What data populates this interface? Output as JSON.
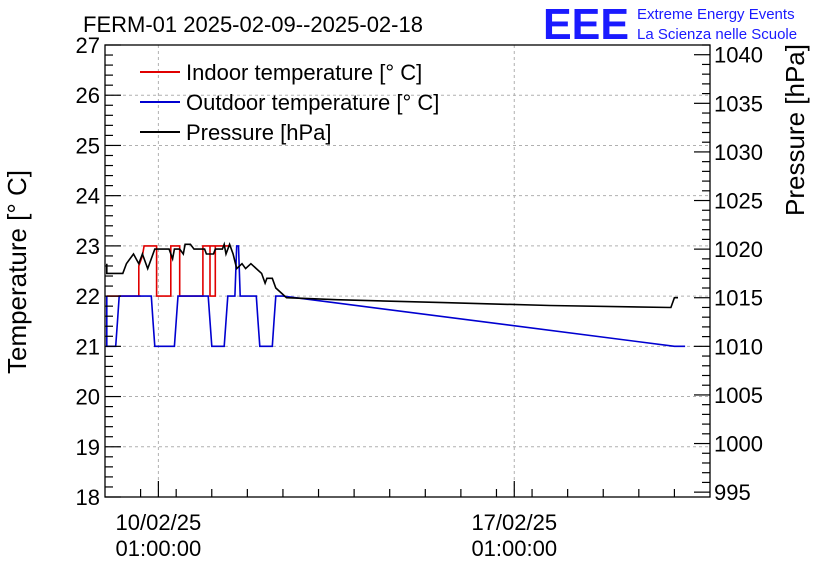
{
  "chart_data": {
    "type": "line",
    "title": "FERM-01 2025-02-09--2025-02-18",
    "ylabel": "Temperature [° C]",
    "y2label": "Pressure [hPa]",
    "ylim": [
      18,
      27
    ],
    "y2lim": [
      994.5,
      1041
    ],
    "yticks": [
      "18",
      "19",
      "20",
      "21",
      "22",
      "23",
      "24",
      "25",
      "26",
      "27"
    ],
    "y2ticks": [
      "995",
      "1000",
      "1005",
      "1010",
      "1015",
      "1020",
      "1025",
      "1030",
      "1035",
      "1040"
    ],
    "xlim": [
      -1.5,
      15.5
    ],
    "xticks": [
      {
        "x": 0,
        "date": "10/02/25",
        "time": "01:00:00"
      },
      {
        "x": 10,
        "date": "17/02/25",
        "time": "01:00:00"
      }
    ],
    "grid": true,
    "legend_position": "top-left",
    "series": [
      {
        "name": "Indoor temperature [° C]",
        "color": "#e00000",
        "axis": "left",
        "points": [
          [
            -1.6,
            22
          ],
          [
            -1.0,
            22
          ],
          [
            -1.0,
            22
          ],
          [
            -1.0,
            22
          ],
          [
            -1.0,
            22
          ],
          [
            -0.9,
            22
          ],
          [
            -1.0,
            22
          ],
          [
            -1.0,
            22
          ],
          [
            -0.9,
            22
          ],
          [
            -1.0,
            22
          ],
          [
            -1.1,
            22
          ],
          [
            -1.1,
            22
          ],
          [
            -1.1,
            22
          ],
          [
            -1.1,
            22
          ],
          [
            -1.1,
            22
          ],
          [
            -1.0,
            22
          ],
          [
            -1.0,
            22
          ],
          [
            -1.0,
            22
          ],
          [
            -1.0,
            22
          ],
          [
            -0.95,
            22
          ],
          [
            -0.9,
            22
          ],
          [
            -1.6,
            22
          ],
          [
            -1.6,
            22
          ],
          [
            -1.6,
            22
          ],
          [
            -0.9,
            22
          ],
          [
            -0.9,
            22
          ],
          [
            -0.95,
            22
          ],
          [
            -0.9,
            22
          ],
          [
            -0.95,
            22
          ],
          [
            -0.9,
            22
          ],
          [
            -1.6,
            22
          ],
          [
            -1.0,
            22
          ],
          [
            -0.9,
            22
          ],
          [
            -0.9,
            22
          ],
          [
            -1.6,
            22
          ],
          [
            -1.0,
            22
          ],
          [
            -1.0,
            22
          ],
          [
            -1.0,
            22
          ],
          [
            -1.0,
            22
          ],
          [
            -1.0,
            22
          ],
          [
            -0.9,
            22
          ],
          [
            -0.9,
            22
          ],
          [
            -1.0,
            22
          ],
          [
            -0.95,
            22
          ],
          [
            -1.6,
            22
          ],
          [
            -1.6,
            22
          ],
          [
            -1.6,
            22
          ],
          [
            -1.6,
            22
          ],
          [
            -1.6,
            22
          ],
          [
            -0.5,
            22
          ],
          [
            -1.6,
            22
          ],
          [
            -1.6,
            22
          ],
          [
            -1.6,
            22
          ],
          [
            -1.6,
            22
          ],
          [
            -1.0,
            22
          ],
          [
            -1.0,
            22
          ],
          [
            -1.0,
            22
          ],
          [
            -1.0,
            22
          ],
          [
            -1.0,
            22
          ],
          [
            -1.0,
            22
          ],
          [
            -1.0,
            22
          ],
          [
            -0.9,
            22
          ],
          [
            -0.95,
            22
          ],
          [
            -1.6,
            22
          ],
          [
            -1.6,
            22
          ],
          [
            -1.6,
            22
          ],
          [
            -1.6,
            22
          ],
          [
            -1.6,
            22
          ],
          [
            -1.6,
            22
          ],
          [
            -1.6,
            22
          ],
          [
            -1.6,
            22
          ],
          [
            -1.6,
            22
          ],
          [
            -1.6,
            22
          ],
          [
            -1.6,
            22
          ],
          [
            -1.6,
            22
          ],
          [
            -1.6,
            22
          ],
          [
            -1.6,
            22
          ],
          [
            -1.6,
            22
          ],
          [
            -1.6,
            22
          ],
          [
            -1.6,
            22
          ],
          [
            -1.0,
            22
          ],
          [
            -1.0,
            22
          ],
          [
            -0.55,
            22
          ],
          [
            -0.55,
            22.6
          ],
          [
            -0.45,
            22.8
          ],
          [
            -0.4,
            23
          ],
          [
            -0.05,
            23
          ],
          [
            -0.05,
            22
          ],
          [
            0.35,
            22
          ],
          [
            0.35,
            23
          ],
          [
            0.6,
            23
          ],
          [
            0.6,
            22
          ],
          [
            1.25,
            22
          ],
          [
            1.25,
            23
          ],
          [
            1.45,
            23
          ],
          [
            1.45,
            22
          ],
          [
            1.6,
            22
          ],
          [
            1.6,
            23
          ],
          [
            2.0,
            23
          ],
          [
            2.0,
            23
          ],
          [
            2.0,
            23
          ],
          [
            2.0,
            23
          ],
          [
            2.0,
            23
          ],
          [
            2.0,
            23
          ],
          [
            2.0,
            23
          ],
          [
            2.0,
            23
          ],
          [
            2.0,
            23
          ],
          [
            2.0,
            23
          ],
          [
            2.0,
            23
          ],
          [
            2.0,
            23
          ],
          [
            2.0,
            23
          ],
          [
            2.0,
            23
          ],
          [
            2.0,
            23
          ],
          [
            2.0,
            23
          ],
          [
            2.0,
            23
          ],
          [
            2.0,
            23
          ],
          [
            2.0,
            23
          ],
          [
            2.0,
            23
          ],
          [
            2.0,
            23
          ],
          [
            2.0,
            23
          ],
          [
            2.0,
            23
          ],
          [
            2.0,
            23
          ],
          [
            2.0,
            23
          ],
          [
            2.0,
            23
          ],
          [
            2.0,
            23
          ],
          [
            2.0,
            23
          ],
          [
            2.0,
            23
          ],
          [
            2.0,
            23
          ],
          [
            2.0,
            23
          ],
          [
            2.0,
            23
          ],
          [
            2.0,
            23
          ],
          [
            2.0,
            23
          ],
          [
            1.25,
            23
          ],
          [
            1.25,
            22
          ],
          [
            1.25,
            22
          ]
        ]
      },
      {
        "name": "Outdoor temperature [° C]",
        "color": "#0000d0",
        "axis": "left",
        "points": [
          [
            -1.6,
            22
          ],
          [
            -1.6,
            21.5
          ],
          [
            -1.55,
            21
          ],
          [
            -1.2,
            21
          ],
          [
            -1.15,
            21.5
          ],
          [
            -1.1,
            22
          ],
          [
            -0.2,
            22
          ],
          [
            -0.15,
            21.5
          ],
          [
            -0.1,
            21
          ],
          [
            0.45,
            21
          ],
          [
            0.5,
            21.5
          ],
          [
            0.55,
            22
          ],
          [
            1.4,
            22
          ],
          [
            1.45,
            21.5
          ],
          [
            1.5,
            21
          ],
          [
            1.85,
            21
          ],
          [
            1.9,
            21.5
          ],
          [
            1.95,
            22
          ],
          [
            2.15,
            22
          ],
          [
            2.2,
            23
          ],
          [
            2.25,
            23
          ],
          [
            2.3,
            22
          ],
          [
            2.75,
            22
          ],
          [
            2.8,
            21.5
          ],
          [
            2.85,
            21
          ],
          [
            3.2,
            21
          ],
          [
            3.25,
            21.5
          ],
          [
            3.3,
            22
          ],
          [
            3.5,
            22
          ],
          [
            14.5,
            21
          ],
          [
            14.8,
            21
          ]
        ]
      },
      {
        "name": "Pressure [hPa]",
        "color": "#000000",
        "axis": "right",
        "points": [
          [
            -1.6,
            1018.5
          ],
          [
            -1.55,
            1017.5
          ],
          [
            -1.0,
            1017.5
          ],
          [
            -0.9,
            1018.5
          ],
          [
            -0.7,
            1019.5
          ],
          [
            -0.55,
            1018.5
          ],
          [
            -0.45,
            1019.5
          ],
          [
            -0.3,
            1018
          ],
          [
            -0.1,
            1020
          ],
          [
            0.3,
            1020
          ],
          [
            0.4,
            1019
          ],
          [
            0.45,
            1020
          ],
          [
            0.6,
            1020
          ],
          [
            0.7,
            1019.5
          ],
          [
            0.75,
            1020.5
          ],
          [
            0.9,
            1020.5
          ],
          [
            1.0,
            1020
          ],
          [
            1.3,
            1020
          ],
          [
            1.35,
            1019.5
          ],
          [
            1.55,
            1019.5
          ],
          [
            1.6,
            1020
          ],
          [
            1.8,
            1020
          ],
          [
            1.85,
            1020.5
          ],
          [
            1.9,
            1019.5
          ],
          [
            2.0,
            1020.5
          ],
          [
            2.1,
            1019.5
          ],
          [
            2.2,
            1018
          ],
          [
            2.35,
            1018.5
          ],
          [
            2.45,
            1018
          ],
          [
            2.6,
            1018.5
          ],
          [
            2.75,
            1018
          ],
          [
            2.9,
            1017.5
          ],
          [
            3.0,
            1016.5
          ],
          [
            3.05,
            1017
          ],
          [
            3.2,
            1017
          ],
          [
            3.3,
            1016
          ],
          [
            3.45,
            1015.5
          ],
          [
            3.6,
            1015
          ],
          [
            5.0,
            1014.8
          ],
          [
            8.0,
            1014.5
          ],
          [
            11.0,
            1014.2
          ],
          [
            14.4,
            1014
          ],
          [
            14.5,
            1015
          ],
          [
            14.6,
            1015
          ]
        ]
      }
    ]
  },
  "logo": {
    "mark": "EEE",
    "line1": "Extreme Energy Events",
    "line2": "La Scienza nelle Scuole"
  }
}
